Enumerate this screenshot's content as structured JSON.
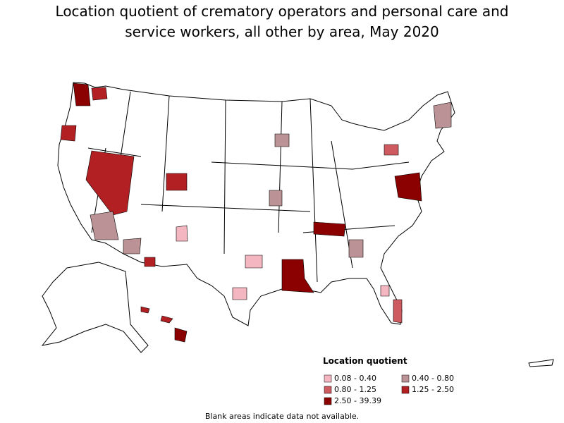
{
  "title": "Location quotient of crematory operators and personal care and service workers, all other by area, May 2020",
  "legend": {
    "title": "Location quotient",
    "items": [
      {
        "label": "0.08 - 0.40",
        "color": "#f4b6c0"
      },
      {
        "label": "0.40 - 0.80",
        "color": "#bb9396"
      },
      {
        "label": "0.80 - 1.25",
        "color": "#cd5b60"
      },
      {
        "label": "1.25 - 2.50",
        "color": "#b22024"
      },
      {
        "label": "2.50 - 39.39",
        "color": "#8b0000"
      }
    ]
  },
  "footnote": "Blank areas indicate data not available."
}
